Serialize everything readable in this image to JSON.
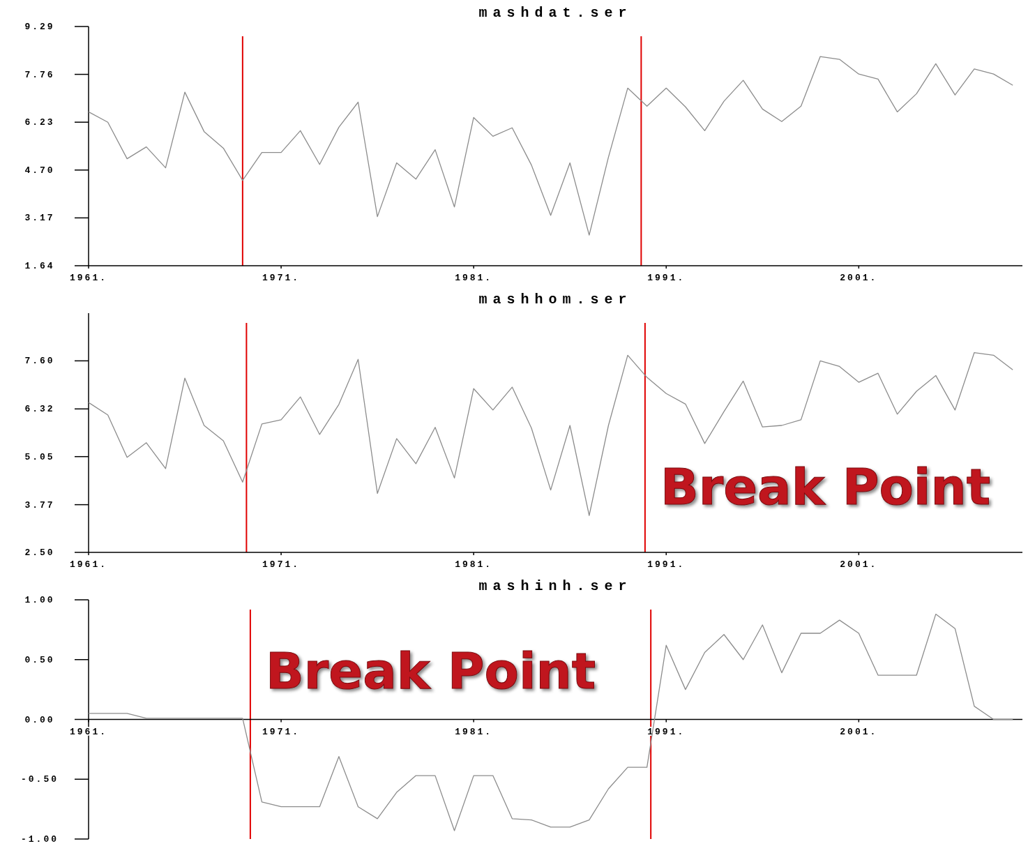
{
  "chart_data": [
    {
      "type": "line",
      "title": "mashdat.ser",
      "x": [
        1961,
        1962,
        1963,
        1964,
        1965,
        1966,
        1967,
        1968,
        1969,
        1970,
        1971,
        1972,
        1973,
        1974,
        1975,
        1976,
        1977,
        1978,
        1979,
        1980,
        1981,
        1982,
        1983,
        1984,
        1985,
        1986,
        1987,
        1988,
        1989,
        1990,
        1991,
        1992,
        1993,
        1994,
        1995,
        1996,
        1997,
        1998,
        1999,
        2000,
        2001,
        2002,
        2003,
        2004,
        2005,
        2006,
        2007,
        2008,
        2009
      ],
      "series": [
        {
          "color": "#8c8c8c",
          "values": [
            6.56,
            6.23,
            5.06,
            5.44,
            4.77,
            7.19,
            5.93,
            5.4,
            4.37,
            5.26,
            5.26,
            5.96,
            4.88,
            6.07,
            6.87,
            3.21,
            4.93,
            4.41,
            5.35,
            3.52,
            6.38,
            5.78,
            6.05,
            4.86,
            3.25,
            4.93,
            2.62,
            5.11,
            7.32,
            6.74,
            7.32,
            6.72,
            5.96,
            6.9,
            7.57,
            6.65,
            6.25,
            6.74,
            8.33,
            8.24,
            7.77,
            7.61,
            6.56,
            7.14,
            8.1,
            7.1,
            7.93,
            7.77,
            7.41
          ]
        }
      ],
      "xlim": [
        1961,
        2009.5
      ],
      "ylim": [
        1.64,
        9.29
      ],
      "xticks": [
        {
          "value": 1961,
          "label": "1961."
        },
        {
          "value": 1971,
          "label": "1971."
        },
        {
          "value": 1981,
          "label": "1981."
        },
        {
          "value": 1991,
          "label": "1991."
        },
        {
          "value": 2001,
          "label": "2001."
        }
      ],
      "yticks": [
        1.64,
        3.17,
        {
          "value": 4.7,
          "label": "4.70"
        },
        6.23,
        7.76,
        9.29
      ],
      "ref_lines": [
        {
          "axis": "x",
          "value": 1969.0,
          "color": "#e00000"
        },
        {
          "axis": "x",
          "value": 1989.7,
          "color": "#e00000"
        }
      ]
    },
    {
      "type": "line",
      "title": "mashhom.ser",
      "x": [
        1961,
        1962,
        1963,
        1964,
        1965,
        1966,
        1967,
        1968,
        1969,
        1970,
        1971,
        1972,
        1973,
        1974,
        1975,
        1976,
        1977,
        1978,
        1979,
        1980,
        1981,
        1982,
        1983,
        1984,
        1985,
        1986,
        1987,
        1988,
        1989,
        1990,
        1991,
        1992,
        1993,
        1994,
        1995,
        1996,
        1997,
        1998,
        1999,
        2000,
        2001,
        2002,
        2003,
        2004,
        2005,
        2006,
        2007,
        2008,
        2009
      ],
      "series": [
        {
          "color": "#8c8c8c",
          "values": [
            6.49,
            6.16,
            5.03,
            5.42,
            4.73,
            7.14,
            5.88,
            5.47,
            4.37,
            5.92,
            6.03,
            6.64,
            5.64,
            6.44,
            7.64,
            4.07,
            5.53,
            4.86,
            5.83,
            4.48,
            6.86,
            6.29,
            6.9,
            5.81,
            4.16,
            5.88,
            3.48,
            5.88,
            7.75,
            7.16,
            6.73,
            6.45,
            5.4,
            6.25,
            7.06,
            5.84,
            5.88,
            6.03,
            7.6,
            7.45,
            7.03,
            7.27,
            6.18,
            6.79,
            7.21,
            6.29,
            7.82,
            7.75,
            7.36
          ]
        }
      ],
      "xlim": [
        1961,
        2009.5
      ],
      "ylim": [
        2.5,
        8.87
      ],
      "xticks": [
        {
          "value": 1961,
          "label": "1961."
        },
        {
          "value": 1971,
          "label": "1971."
        },
        {
          "value": 1981,
          "label": "1981."
        },
        {
          "value": 1991,
          "label": "1991."
        },
        {
          "value": 2001,
          "label": "2001."
        }
      ],
      "yticks": [
        {
          "value": 2.5,
          "label": "2.50"
        },
        3.77,
        5.05,
        6.32,
        {
          "value": 7.6,
          "label": "7.60"
        }
      ],
      "ref_lines": [
        {
          "axis": "x",
          "value": 1969.2,
          "color": "#e00000"
        },
        {
          "axis": "x",
          "value": 1989.9,
          "color": "#e00000",
          "label": "Break Point"
        }
      ]
    },
    {
      "type": "line",
      "title": "mashinh.ser",
      "x": [
        1961,
        1962,
        1963,
        1964,
        1965,
        1966,
        1967,
        1968,
        1969,
        1970,
        1971,
        1972,
        1973,
        1974,
        1975,
        1976,
        1977,
        1978,
        1979,
        1980,
        1981,
        1982,
        1983,
        1984,
        1985,
        1986,
        1987,
        1988,
        1989,
        1990,
        1991,
        1992,
        1993,
        1994,
        1995,
        1996,
        1997,
        1998,
        1999,
        2000,
        2001,
        2002,
        2003,
        2004,
        2005,
        2006,
        2007,
        2008,
        2009
      ],
      "series": [
        {
          "color": "#8c8c8c",
          "values": [
            0.05,
            0.05,
            0.05,
            0.01,
            0.01,
            0.01,
            0.01,
            0.01,
            0.01,
            -0.69,
            -0.73,
            -0.73,
            -0.73,
            -0.31,
            -0.73,
            -0.83,
            -0.61,
            -0.47,
            -0.47,
            -0.93,
            -0.47,
            -0.47,
            -0.83,
            -0.84,
            -0.9,
            -0.9,
            -0.84,
            -0.58,
            -0.4,
            -0.4,
            0.62,
            0.25,
            0.56,
            0.71,
            0.5,
            0.79,
            0.39,
            0.72,
            0.72,
            0.83,
            0.72,
            0.37,
            0.37,
            0.37,
            0.88,
            0.76,
            0.11,
            0,
            0
          ]
        }
      ],
      "xlim": [
        1961,
        2009.5
      ],
      "ylim": [
        -1,
        1
      ],
      "xticks": [
        {
          "value": 1961,
          "label": "1961."
        },
        {
          "value": 1971,
          "label": "1971."
        },
        {
          "value": 1981,
          "label": "1981."
        },
        {
          "value": 1991,
          "label": "1991."
        },
        {
          "value": 2001,
          "label": "2001."
        }
      ],
      "yticks": [
        {
          "value": -1,
          "label": "-1.00"
        },
        {
          "value": -0.5,
          "label": "-0.50"
        },
        {
          "value": 0,
          "label": "0.00"
        },
        {
          "value": 0.5,
          "label": "0.50"
        },
        {
          "value": 1,
          "label": "1.00"
        }
      ],
      "ref_lines": [
        {
          "axis": "x",
          "value": 1969.4,
          "color": "#e00000",
          "label": "Break Point"
        },
        {
          "axis": "x",
          "value": 1990.2,
          "color": "#e00000"
        }
      ]
    }
  ]
}
